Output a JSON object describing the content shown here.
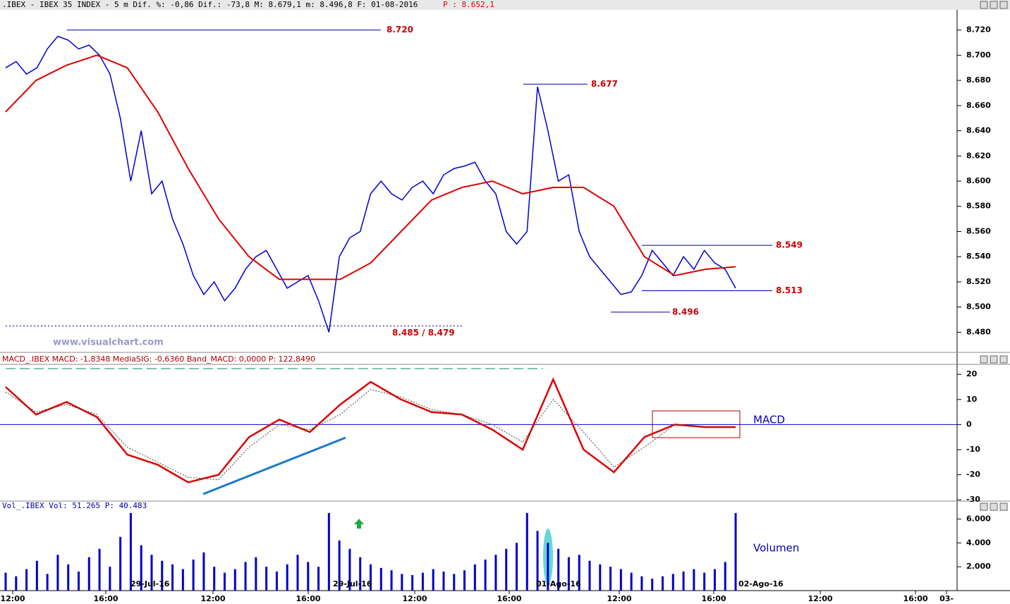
{
  "header": {
    "text": ".IBEX - IBEX 35 INDEX -   5 m Dif. %: -0,86 Dif.: -73,8 M: 8.679,1 m: 8.496,8 F: 01-08-2016",
    "price": "P : 8.652,1"
  },
  "watermark": "www.visualchart.com",
  "x_axis": {
    "times": [
      "12:00",
      "16:00",
      "12:00",
      "16:00",
      "12:00",
      "16:00",
      "12:00",
      "16:00",
      "12:00",
      "16:00",
      "03-"
    ],
    "dates": [
      "29-Jul-16",
      "29-Jul-16",
      "01-Ago-16",
      "02-Ago-16"
    ]
  },
  "chart_data": [
    {
      "type": "line",
      "series": [
        {
          "color": "#0000cc",
          "values": [
            8.69,
            8.695,
            8.685,
            8.69,
            8.705,
            8.715,
            8.712,
            8.705,
            8.708,
            8.7,
            8.685,
            8.65,
            8.6,
            8.64,
            8.59,
            8.6,
            8.57,
            8.55,
            8.525,
            8.51,
            8.52,
            8.505,
            8.515,
            8.53,
            8.54,
            8.545,
            8.53,
            8.515,
            8.52,
            8.525,
            8.505,
            8.48,
            8.54,
            8.555,
            8.56,
            8.59,
            8.6,
            8.59,
            8.585,
            8.595,
            8.6,
            8.59,
            8.605,
            8.61,
            8.612,
            8.615,
            8.6,
            8.59,
            8.56,
            8.55,
            8.56,
            8.675,
            8.64,
            8.6,
            8.605,
            8.56,
            8.54,
            8.53,
            8.52,
            8.51,
            8.512,
            8.525,
            8.545,
            8.535,
            8.525,
            8.54,
            8.53,
            8.545,
            8.535,
            8.53,
            8.515
          ]
        },
        {
          "color": "#dd0000",
          "values": [
            8.655,
            8.68,
            8.692,
            8.7,
            8.69,
            8.655,
            8.61,
            8.57,
            8.54,
            8.522,
            8.522,
            8.522,
            8.535,
            8.56,
            8.585,
            8.595,
            8.6,
            8.59,
            8.595,
            8.595,
            8.58,
            8.54,
            8.525,
            8.53,
            8.532
          ]
        }
      ],
      "ylim": [
        8.464,
        8.736
      ],
      "yticks": [
        {
          "value": 8.48,
          "label": "8.480"
        },
        {
          "value": 8.5,
          "label": "8.500"
        },
        {
          "value": 8.52,
          "label": "8.520"
        },
        {
          "value": 8.54,
          "label": "8.540"
        },
        {
          "value": 8.56,
          "label": "8.560"
        },
        {
          "value": 8.58,
          "label": "8.580"
        },
        {
          "value": 8.6,
          "label": "8.600"
        },
        {
          "value": 8.62,
          "label": "8.620"
        },
        {
          "value": 8.64,
          "label": "8.640"
        },
        {
          "value": 8.66,
          "label": "8.660"
        },
        {
          "value": 8.68,
          "label": "8.680"
        },
        {
          "value": 8.7,
          "label": "8.700"
        },
        {
          "value": 8.72,
          "label": "8.720"
        }
      ],
      "levels": [
        {
          "value": 8.72,
          "label": "8.720"
        },
        {
          "value": 8.677,
          "label": "8.677"
        },
        {
          "value": 8.549,
          "label": "8.549"
        },
        {
          "value": 8.513,
          "label": "8.513"
        },
        {
          "value": 8.496,
          "label": "8.496"
        },
        {
          "value": 8.485,
          "label": "8.485 / 8.479"
        }
      ]
    },
    {
      "type": "line",
      "title": "MACD_.IBEX MACD: -1,8348 MediaSIG: -0,6360 Band_MACD: 0,0000 P: 122,8490",
      "label": "MACD",
      "series": [
        {
          "color": "#dd0000",
          "values": [
            15,
            4,
            9,
            3,
            -12,
            -16,
            -23,
            -20,
            -5,
            2,
            -3,
            8,
            17,
            10,
            5,
            4,
            -2,
            -10,
            18,
            -10,
            -19,
            -5,
            0,
            -1,
            -1
          ]
        },
        {
          "color": "#444444",
          "values": [
            13,
            5,
            8,
            4,
            -9,
            -15,
            -21,
            -22,
            -9,
            0,
            -2,
            4,
            14,
            11,
            6,
            4,
            0,
            -7,
            10,
            -3,
            -17,
            -9,
            0,
            -1,
            -1
          ]
        }
      ],
      "ylim": [
        -30.5,
        24
      ],
      "yticks": [
        20,
        10,
        0,
        -10,
        -20,
        -30
      ]
    },
    {
      "type": "bar",
      "title": "Vol_.IBEX Vol: 51.265 P: 40.483",
      "label": "Volumen",
      "color": "#0000cc",
      "values": [
        1500,
        1200,
        1800,
        2500,
        1400,
        3000,
        2200,
        1600,
        2800,
        3500,
        2000,
        4500,
        6500,
        3800,
        3000,
        2500,
        2200,
        1800,
        2600,
        3200,
        2000,
        1500,
        1800,
        2400,
        2800,
        2000,
        1600,
        2200,
        3000,
        2400,
        2000,
        6500,
        4200,
        3500,
        2800,
        2200,
        1900,
        1700,
        1400,
        1300,
        1500,
        1800,
        1600,
        1400,
        1700,
        2200,
        2600,
        3000,
        3500,
        4000,
        6500,
        5000,
        4000,
        3500,
        2800,
        3000,
        2500,
        2200,
        2000,
        1800,
        1500,
        1200,
        1000,
        1200,
        1400,
        1600,
        1800,
        1500,
        1800,
        2400,
        6500
      ],
      "ylim": [
        0,
        7500
      ],
      "yticks": [
        {
          "value": 2000,
          "label": "2.000"
        },
        {
          "value": 4000,
          "label": "4.000"
        },
        {
          "value": 6000,
          "label": "6.000"
        }
      ]
    }
  ]
}
